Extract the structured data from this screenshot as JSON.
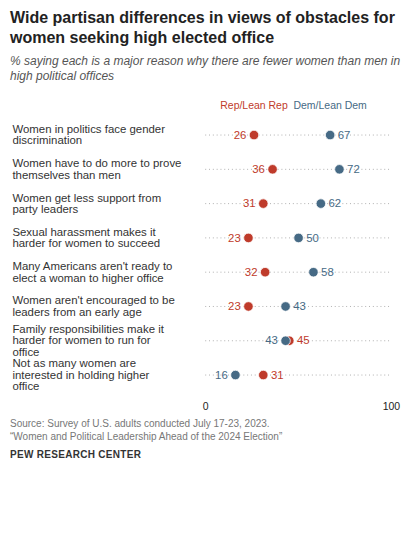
{
  "chart_data": {
    "type": "dot",
    "orientation": "horizontal",
    "title": "Wide partisan differences in views of obstacles for women seeking high elected office",
    "subtitle": "% saying each is a major reason why there are fewer women than men in high political offices",
    "categories": [
      "Women in politics face gender discrimination",
      "Women have to do more to prove themselves than men",
      "Women get less support from party leaders",
      "Sexual harassment makes it harder for women to succeed",
      "Many Americans aren't ready to elect a woman to higher office",
      "Women aren't encouraged to be leaders from an early age",
      "Family responsibilities make it harder for women to run for office",
      "Not as many women are interested in holding higher office"
    ],
    "series": [
      {
        "name": "Rep/Lean Rep",
        "color": "#bf3b2b",
        "values": [
          26,
          36,
          31,
          23,
          32,
          23,
          45,
          31
        ]
      },
      {
        "name": "Dem/Lean Dem",
        "color": "#466a85",
        "values": [
          67,
          72,
          62,
          50,
          58,
          43,
          43,
          16
        ]
      }
    ],
    "xlim": [
      0,
      100
    ],
    "xticks": [
      0,
      100
    ],
    "data_labels": true,
    "legend": "top",
    "notes": [
      "Source: Survey of U.S. adults conducted July 17-23, 2023.",
      "“Women and Political Leadership Ahead of the 2024 Election”"
    ],
    "source": "PEW RESEARCH CENTER"
  }
}
